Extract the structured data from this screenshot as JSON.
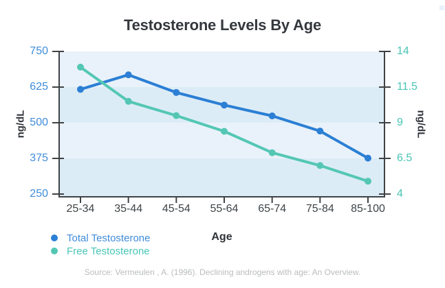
{
  "source_note": "Source: Vermeulen , A. (1996). Declining androgens with age: An Overview.",
  "chart_data": {
    "type": "line",
    "title": "Testosterone Levels By Age",
    "xlabel": "Age",
    "categories": [
      "25-34",
      "35-44",
      "45-54",
      "55-64",
      "65-74",
      "75-84",
      "85-100"
    ],
    "axes": {
      "left": {
        "label": "ng/dL",
        "ticks": [
          "750",
          "625",
          "500",
          "375",
          "250"
        ],
        "range": [
          250,
          750
        ],
        "text_color": "#3f8cda"
      },
      "right": {
        "label": "ng/dL",
        "ticks": [
          "14",
          "11.5",
          "9",
          "6.5",
          "4"
        ],
        "range": [
          4,
          14
        ],
        "text_color": "#47c5b6"
      }
    },
    "series": [
      {
        "name": "Total Testosterone",
        "axis": "left",
        "color": "#2b7fd4",
        "values": [
          617,
          668,
          606,
          562,
          524,
          471,
          376
        ]
      },
      {
        "name": "Free Testosterone",
        "axis": "right",
        "color": "#54c7b4",
        "values": [
          12.9,
          10.5,
          9.5,
          8.4,
          6.9,
          6.0,
          4.9
        ]
      }
    ],
    "legend_position": "bottom-left",
    "grid": "horizontal-bands",
    "band_colors": [
      "#e9f2fa",
      "#dcecf6"
    ],
    "axis_line_color": "#3f4245",
    "ylim_left": [
      250,
      750
    ],
    "ylim_right": [
      4,
      14
    ]
  }
}
